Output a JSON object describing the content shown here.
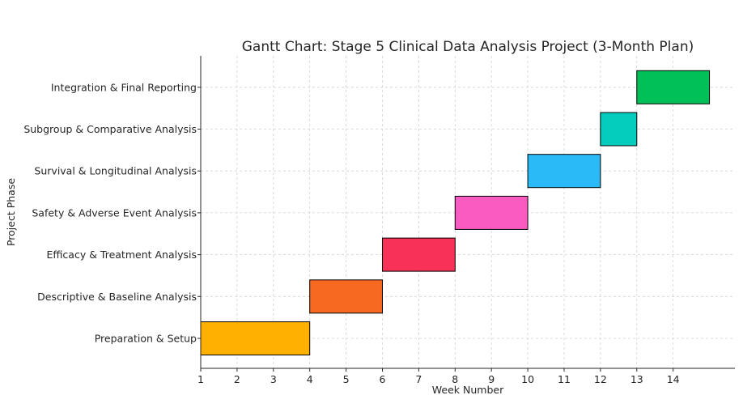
{
  "chart_data": {
    "type": "gantt",
    "title": "Gantt Chart: Stage 5 Clinical Data Analysis Project (3-Month Plan)",
    "xlabel": "Week Number",
    "ylabel": "Project Phase",
    "x_ticks": [
      1,
      2,
      3,
      4,
      5,
      6,
      7,
      8,
      9,
      10,
      11,
      12,
      13,
      14
    ],
    "xlim": [
      1,
      15.7
    ],
    "grid": true,
    "tasks": [
      {
        "label": "Preparation & Setup",
        "start": 1,
        "end": 4,
        "color": "#FFB000"
      },
      {
        "label": "Descriptive & Baseline Analysis",
        "start": 4,
        "end": 6,
        "color": "#F76820"
      },
      {
        "label": "Efficacy & Treatment Analysis",
        "start": 6,
        "end": 8,
        "color": "#F73157"
      },
      {
        "label": "Safety & Adverse Event Analysis",
        "start": 8,
        "end": 10,
        "color": "#F95BC0"
      },
      {
        "label": "Survival & Longitudinal Analysis",
        "start": 10,
        "end": 12,
        "color": "#2BBAF8"
      },
      {
        "label": "Subgroup & Comparative Analysis",
        "start": 12,
        "end": 13,
        "color": "#05CDBE"
      },
      {
        "label": "Integration & Final Reporting",
        "start": 13,
        "end": 15,
        "color": "#00C057"
      }
    ]
  }
}
